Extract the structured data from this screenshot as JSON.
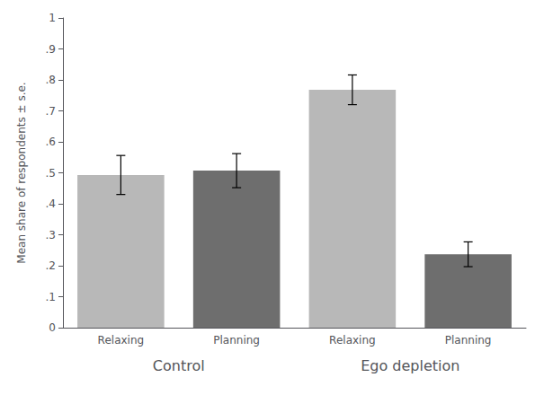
{
  "chart_data": {
    "type": "bar",
    "categories": [
      "Relaxing",
      "Planning",
      "Relaxing",
      "Planning"
    ],
    "groups": [
      "Control",
      "Ego depletion"
    ],
    "values": [
      0.493,
      0.507,
      0.768,
      0.237
    ],
    "errors": [
      0.063,
      0.055,
      0.048,
      0.04
    ],
    "colors": [
      "#b8b8b8",
      "#6e6e6e",
      "#b8b8b8",
      "#6e6e6e"
    ],
    "ylabel": "Mean share of respondents ± s.e.",
    "ylim": [
      0,
      1
    ],
    "yticks": [
      0,
      {
        "value": 0.1,
        "label": ".1"
      },
      {
        "value": 0.2,
        "label": ".2"
      },
      {
        "value": 0.3,
        "label": ".3"
      },
      {
        "value": 0.4,
        "label": ".4"
      },
      {
        "value": 0.5,
        "label": ".5"
      },
      {
        "value": 0.6,
        "label": ".6"
      },
      {
        "value": 0.7,
        "label": ".7"
      },
      {
        "value": 0.8,
        "label": ".8"
      },
      {
        "value": 0.9,
        "label": ".9"
      },
      1
    ],
    "grid": false
  }
}
